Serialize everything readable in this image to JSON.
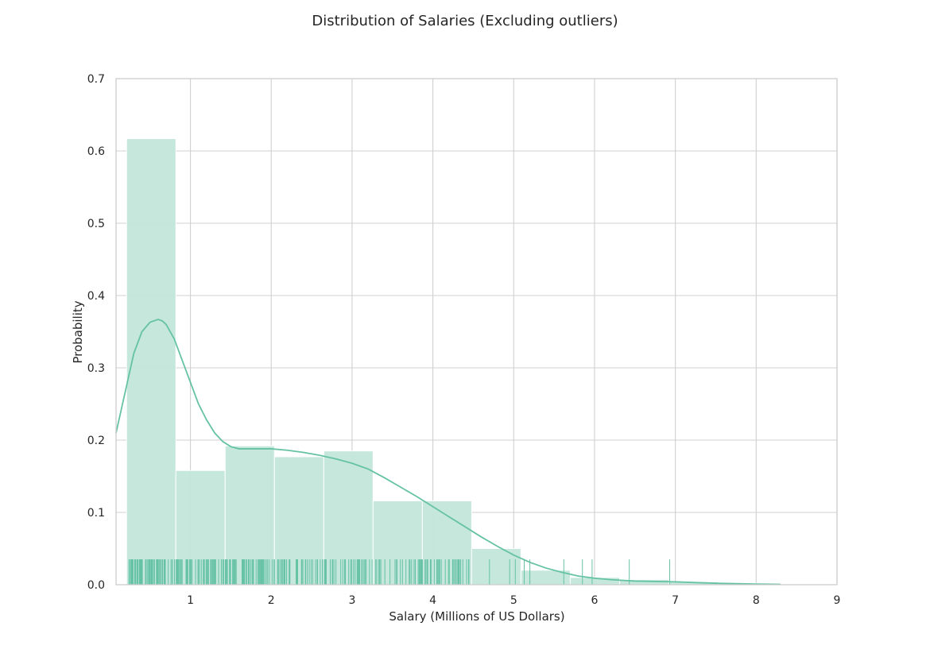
{
  "chart_data": {
    "type": "bar",
    "title": "Distribution of Salaries (Excluding outliers)",
    "xlabel": "Salary (Millions of US Dollars)",
    "ylabel": "Probability",
    "xlim": [
      0.08,
      9.0
    ],
    "ylim": [
      0.0,
      0.7
    ],
    "xticks": [
      "1",
      "2",
      "3",
      "4",
      "5",
      "6",
      "7",
      "8",
      "9"
    ],
    "yticks": [
      "0.0",
      "0.1",
      "0.2",
      "0.3",
      "0.4",
      "0.5",
      "0.6",
      "0.7"
    ],
    "grid": true,
    "colors": {
      "fill": "#c2e6da",
      "line": "#66c2a5",
      "grid": "#d0d0d0",
      "edge": "#ffffff"
    },
    "histogram": {
      "bin_edges": [
        0.21,
        0.82,
        1.43,
        2.04,
        2.65,
        3.26,
        3.87,
        4.48,
        5.09,
        5.7,
        6.31,
        6.92,
        7.53,
        8.14
      ],
      "values": [
        0.617,
        0.158,
        0.192,
        0.177,
        0.185,
        0.116,
        0.116,
        0.05,
        0.02,
        0.01,
        0.007,
        0.004,
        0.002
      ]
    },
    "kde": {
      "x": [
        0.08,
        0.2,
        0.3,
        0.4,
        0.5,
        0.6,
        0.65,
        0.7,
        0.8,
        0.9,
        1.0,
        1.1,
        1.2,
        1.3,
        1.4,
        1.5,
        1.6,
        1.7,
        1.8,
        2.0,
        2.2,
        2.4,
        2.6,
        2.8,
        3.0,
        3.2,
        3.4,
        3.6,
        3.8,
        4.0,
        4.2,
        4.4,
        4.6,
        4.8,
        5.0,
        5.2,
        5.4,
        5.6,
        5.8,
        6.0,
        6.2,
        6.5,
        7.0,
        7.5,
        8.0,
        8.3
      ],
      "y": [
        0.21,
        0.27,
        0.32,
        0.35,
        0.363,
        0.367,
        0.365,
        0.36,
        0.34,
        0.31,
        0.28,
        0.25,
        0.228,
        0.21,
        0.198,
        0.191,
        0.188,
        0.188,
        0.188,
        0.188,
        0.186,
        0.183,
        0.179,
        0.174,
        0.168,
        0.16,
        0.148,
        0.135,
        0.122,
        0.108,
        0.094,
        0.08,
        0.066,
        0.053,
        0.041,
        0.031,
        0.023,
        0.017,
        0.012,
        0.009,
        0.007,
        0.005,
        0.004,
        0.002,
        0.001,
        0.0005
      ]
    },
    "rug": {
      "height": 0.035,
      "dense_from": 0.24,
      "dense_to": 4.5,
      "sparse": [
        4.7,
        4.95,
        5.02,
        5.13,
        5.2,
        5.62,
        5.85,
        5.97,
        6.43,
        6.93
      ]
    }
  }
}
